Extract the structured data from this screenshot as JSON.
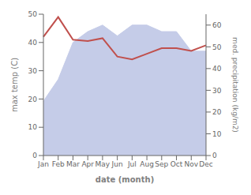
{
  "chart_data": {
    "type": "line",
    "categories": [
      "Jan",
      "Feb",
      "Mar",
      "Apr",
      "May",
      "Jun",
      "Jul",
      "Aug",
      "Sep",
      "Oct",
      "Nov",
      "Dec"
    ],
    "xlabel": "date (month)",
    "ylabel": "max temp (C)",
    "y2label": "med. precipitation (kg/m2)",
    "ylim": [
      0,
      50
    ],
    "yticks": [
      0,
      10,
      20,
      30,
      40,
      50
    ],
    "y2lim": [
      0,
      65
    ],
    "y2ticks": [
      0,
      10,
      20,
      30,
      40,
      50,
      60
    ],
    "grid": false,
    "series": [
      {
        "type": "area",
        "axis": "y2",
        "color": "#c5cce8",
        "values": [
          25,
          35,
          52,
          57,
          60,
          55,
          60,
          60,
          57,
          57,
          48,
          48
        ]
      },
      {
        "type": "line",
        "color": "#c0504d",
        "values": [
          42,
          49,
          41,
          40.5,
          41.5,
          35,
          34,
          36,
          38,
          38,
          37,
          39
        ]
      }
    ]
  }
}
